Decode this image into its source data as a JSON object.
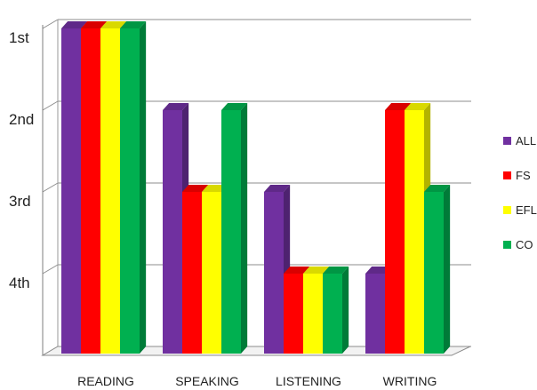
{
  "chart_data": {
    "type": "bar",
    "title": "",
    "xlabel": "",
    "ylabel": "",
    "categories": [
      "READING",
      "SPEAKING",
      "LISTENING",
      "WRITING"
    ],
    "y_ticks": [
      "1st",
      "2nd",
      "3rd",
      "4th"
    ],
    "y_scale": "rank (1st at top)",
    "ylim": [
      4,
      0
    ],
    "grid": true,
    "legend_position": "right",
    "series": [
      {
        "name": "ALL",
        "color": "#7030a0",
        "values": [
          1,
          2,
          3,
          4
        ]
      },
      {
        "name": "FS",
        "color": "#ff0000",
        "values": [
          1,
          3,
          4,
          2
        ]
      },
      {
        "name": "EFL",
        "color": "#ffff00",
        "values": [
          1,
          3,
          4,
          2
        ]
      },
      {
        "name": "CO",
        "color": "#00b050",
        "values": [
          1,
          2,
          4,
          3
        ]
      }
    ]
  }
}
